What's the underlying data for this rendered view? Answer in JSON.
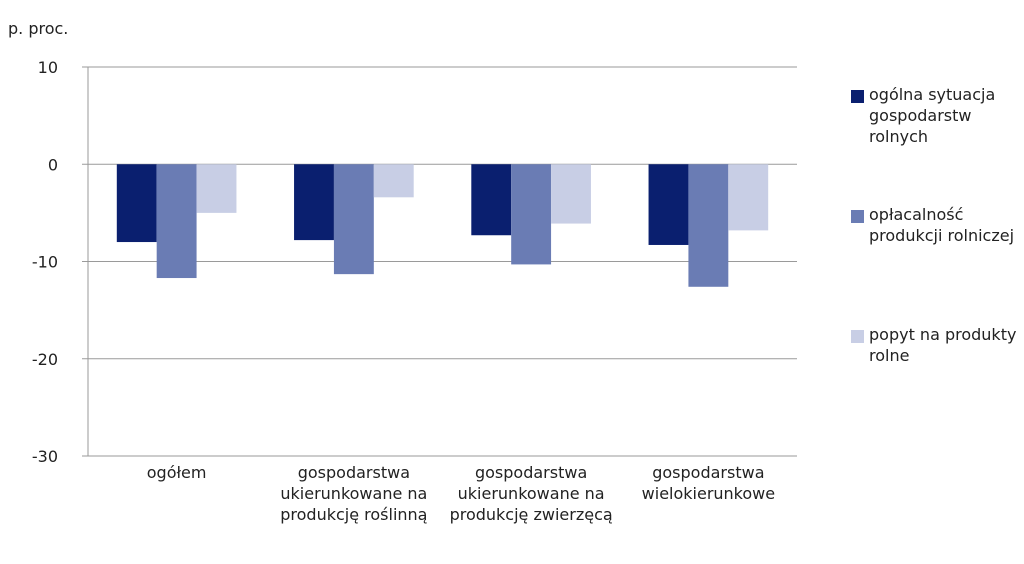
{
  "chart_data": {
    "type": "bar",
    "y_label": "p. proc.",
    "categories": [
      "ogółem",
      "gospodarstwa ukierunkowane na produkcję roślinną",
      "gospodarstwa ukierunkowane na produkcję zwierzęcą",
      "gospodarstwa wielokierunkowe"
    ],
    "series": [
      {
        "name": "ogólna sytuacja gospodarstw rolnych",
        "color": "#0a1f6f",
        "values": [
          -8.0,
          -7.8,
          -7.3,
          -8.3
        ]
      },
      {
        "name": "opłacalność produkcji rolniczej",
        "color": "#6a7cb4",
        "values": [
          -11.7,
          -11.3,
          -10.3,
          -12.6
        ]
      },
      {
        "name": "popyt na produkty rolne",
        "color": "#c8cee5",
        "values": [
          -5.0,
          -3.4,
          -6.1,
          -6.8
        ]
      }
    ],
    "ylim": [
      -30,
      10
    ],
    "yticks": [
      -30,
      -20,
      -10,
      0,
      10
    ],
    "grid": true
  }
}
